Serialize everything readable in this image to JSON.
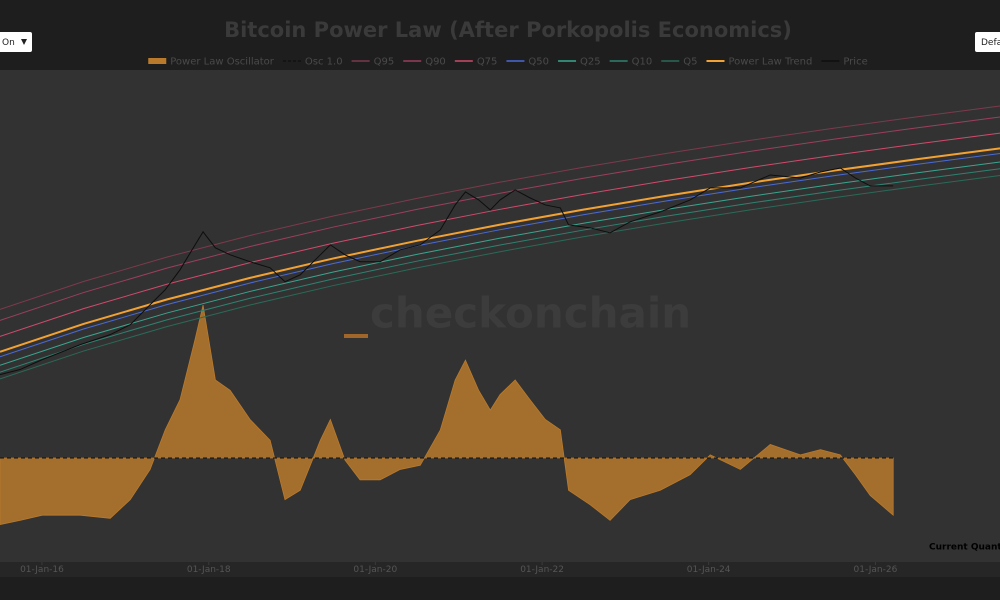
{
  "controls": {
    "toggle": "On",
    "preset": "Defa"
  },
  "chart_data": {
    "type": "line",
    "title": "Bitcoin Power Law (After Porkopolis Economics)",
    "watermark": "checkonchain",
    "annotation": "Current Quant",
    "legend_position": "top",
    "grid": false,
    "xlim": [
      "2015-07-01",
      "2027-07-01"
    ],
    "xticks": [
      {
        "value": "2016-01-01",
        "label": "01-Jan-16"
      },
      {
        "value": "2018-01-01",
        "label": "01-Jan-18"
      },
      {
        "value": "2020-01-01",
        "label": "01-Jan-20"
      },
      {
        "value": "2022-01-01",
        "label": "01-Jan-22"
      },
      {
        "value": "2024-01-01",
        "label": "01-Jan-24"
      },
      {
        "value": "2026-01-01",
        "label": "01-Jan-26"
      }
    ],
    "ylim": [
      2.3,
      1450000
    ],
    "y_log": true,
    "y2lim": [
      0,
      4.73
    ],
    "series": [
      {
        "name": "Power Law Oscillator",
        "kind": "area",
        "axis": "y2",
        "color": "#b97a2c",
        "x": [
          "2015-07-01",
          "2015-09-27",
          "2016-01-02",
          "2016-06-17",
          "2016-10-26",
          "2017-01-22",
          "2017-04-19",
          "2017-06-24",
          "2017-08-28",
          "2017-11-02",
          "2017-12-07",
          "2018-01-30",
          "2018-04-05",
          "2018-07-01",
          "2018-09-27",
          "2018-12-01",
          "2019-02-06",
          "2019-05-05",
          "2019-06-18",
          "2019-08-21",
          "2019-10-26",
          "2020-01-22",
          "2020-04-19",
          "2020-07-16",
          "2020-10-12",
          "2020-12-16",
          "2021-01-30",
          "2021-03-29",
          "2021-05-19",
          "2021-07-01",
          "2021-09-05",
          "2021-11-09",
          "2022-01-15",
          "2022-03-22",
          "2022-04-27",
          "2022-07-31",
          "2022-10-26",
          "2023-01-22",
          "2023-06-03",
          "2023-10-12",
          "2024-01-08",
          "2024-05-19",
          "2024-09-27",
          "2025-02-06",
          "2025-05-05",
          "2025-07-31",
          "2025-10-05",
          "2025-12-09",
          "2026-03-20"
        ],
        "values": [
          0.36,
          0.4,
          0.45,
          0.45,
          0.42,
          0.6,
          0.89,
          1.27,
          1.56,
          2.14,
          2.47,
          1.75,
          1.65,
          1.37,
          1.17,
          0.6,
          0.69,
          1.17,
          1.37,
          0.98,
          0.79,
          0.79,
          0.89,
          0.93,
          1.27,
          1.75,
          1.94,
          1.65,
          1.46,
          1.61,
          1.75,
          1.56,
          1.37,
          1.27,
          0.69,
          0.55,
          0.4,
          0.6,
          0.69,
          0.84,
          1.03,
          0.89,
          1.13,
          1.03,
          1.08,
          1.03,
          0.84,
          0.64,
          0.45
        ]
      },
      {
        "name": "Osc 1.0",
        "kind": "line",
        "dash": true,
        "axis": "y2",
        "color": "#111111",
        "x": [
          "2015-07-01",
          "2026-03-20"
        ],
        "values": [
          1,
          1
        ]
      },
      {
        "name": "Q95",
        "kind": "line",
        "color": "#7d3a4c",
        "x": [
          "2015-07-01",
          "2016-07-01",
          "2017-07-01",
          "2018-07-01",
          "2019-07-01",
          "2020-07-01",
          "2021-07-01",
          "2022-07-01",
          "2023-07-01",
          "2024-07-01",
          "2025-07-01",
          "2026-07-01",
          "2027-07-01"
        ],
        "values": [
          2188,
          4654,
          9037,
          16250,
          27540,
          44460,
          69030,
          103500,
          151000,
          214800,
          298500,
          406300,
          545800
        ]
      },
      {
        "name": "Q90",
        "kind": "line",
        "color": "#9c3f5c",
        "x": [
          "2015-07-01",
          "2016-07-01",
          "2017-07-01",
          "2018-07-01",
          "2019-07-01",
          "2020-07-01",
          "2021-07-01",
          "2022-07-01",
          "2023-07-01",
          "2024-07-01",
          "2025-07-01",
          "2026-07-01",
          "2027-07-01"
        ],
        "values": [
          1622,
          3450,
          6699,
          12050,
          20420,
          32960,
          51170,
          76720,
          111900,
          159200,
          221300,
          301200,
          404600
        ]
      },
      {
        "name": "Q75",
        "kind": "line",
        "color": "#d14a6c",
        "x": [
          "2015-07-01",
          "2016-07-01",
          "2017-07-01",
          "2018-07-01",
          "2019-07-01",
          "2020-07-01",
          "2021-07-01",
          "2022-07-01",
          "2023-07-01",
          "2024-07-01",
          "2025-07-01",
          "2026-07-01",
          "2027-07-01"
        ],
        "values": [
          1048,
          2229,
          4327,
          7782,
          13190,
          21290,
          33050,
          49550,
          72290,
          102800,
          142900,
          194500,
          261300
        ]
      },
      {
        "name": "Q50",
        "kind": "line",
        "color": "#4a6ad6",
        "x": [
          "2015-07-01",
          "2016-07-01",
          "2017-07-01",
          "2018-07-01",
          "2019-07-01",
          "2020-07-01",
          "2021-07-01",
          "2022-07-01",
          "2023-07-01",
          "2024-07-01",
          "2025-07-01",
          "2026-07-01",
          "2027-07-01"
        ],
        "values": [
          603,
          1282,
          2489,
          4477,
          7586,
          12250,
          19010,
          28510,
          41590,
          59160,
          82230,
          111900,
          150300
        ]
      },
      {
        "name": "Q25",
        "kind": "line",
        "color": "#3aa58e",
        "x": [
          "2015-07-01",
          "2016-07-01",
          "2017-07-01",
          "2018-07-01",
          "2019-07-01",
          "2020-07-01",
          "2021-07-01",
          "2022-07-01",
          "2023-07-01",
          "2024-07-01",
          "2025-07-01",
          "2026-07-01",
          "2027-07-01"
        ],
        "values": [
          479,
          1019,
          1978,
          3557,
          6027,
          9730,
          15110,
          22650,
          33040,
          47000,
          65330,
          88920,
          119400
        ]
      },
      {
        "name": "Q10",
        "kind": "line",
        "color": "#2e8270",
        "x": [
          "2015-07-01",
          "2016-07-01",
          "2017-07-01",
          "2018-07-01",
          "2019-07-01",
          "2020-07-01",
          "2021-07-01",
          "2022-07-01",
          "2023-07-01",
          "2024-07-01",
          "2025-07-01",
          "2026-07-01",
          "2027-07-01"
        ],
        "values": [
          398,
          846,
          1643,
          2956,
          5008,
          8085,
          12550,
          18820,
          27460,
          39050,
          54290,
          73890,
          99250
        ]
      },
      {
        "name": "Q5",
        "kind": "line",
        "color": "#2a6a58",
        "x": [
          "2015-07-01",
          "2016-07-01",
          "2017-07-01",
          "2018-07-01",
          "2019-07-01",
          "2020-07-01",
          "2021-07-01",
          "2022-07-01",
          "2023-07-01",
          "2024-07-01",
          "2025-07-01",
          "2026-07-01",
          "2027-07-01"
        ],
        "values": [
          331,
          705,
          1369,
          2462,
          4172,
          6735,
          10460,
          15680,
          22870,
          32530,
          45220,
          61550,
          82680
        ]
      },
      {
        "name": "Power Law Trend",
        "kind": "line",
        "width": 2,
        "color": "#f2a232",
        "x": [
          "2015-07-01",
          "2016-07-01",
          "2017-07-01",
          "2018-07-01",
          "2019-07-01",
          "2020-07-01",
          "2021-07-01",
          "2022-07-01",
          "2023-07-01",
          "2024-07-01",
          "2025-07-01",
          "2026-07-01",
          "2027-07-01"
        ],
        "values": [
          692,
          1472,
          2858,
          5140,
          8710,
          14060,
          21830,
          32730,
          47750,
          67920,
          94410,
          128500,
          172600
        ]
      },
      {
        "name": "Price",
        "kind": "line",
        "color": "#0e0e0e",
        "x": [
          "2015-07-01",
          "2015-09-27",
          "2016-01-02",
          "2016-06-17",
          "2016-10-26",
          "2017-01-22",
          "2017-04-19",
          "2017-06-24",
          "2017-08-28",
          "2017-11-02",
          "2017-12-07",
          "2018-01-30",
          "2018-04-05",
          "2018-07-01",
          "2018-09-27",
          "2018-12-01",
          "2019-02-06",
          "2019-05-05",
          "2019-06-18",
          "2019-08-21",
          "2019-10-26",
          "2020-01-22",
          "2020-04-19",
          "2020-07-16",
          "2020-10-12",
          "2020-12-16",
          "2021-01-30",
          "2021-03-29",
          "2021-05-19",
          "2021-07-01",
          "2021-09-05",
          "2021-11-09",
          "2022-01-15",
          "2022-03-22",
          "2022-04-27",
          "2022-07-31",
          "2022-10-26",
          "2023-01-22",
          "2023-06-03",
          "2023-10-12",
          "2024-01-08",
          "2024-05-19",
          "2024-09-27",
          "2025-02-06",
          "2025-05-05",
          "2025-07-31",
          "2025-10-05",
          "2025-12-09",
          "2026-03-20"
        ],
        "values": [
          372,
          427,
          559,
          840,
          1101,
          1443,
          2480,
          3720,
          6400,
          12600,
          17950,
          11620,
          9610,
          7960,
          6760,
          4630,
          5590,
          9610,
          12600,
          9610,
          7960,
          7960,
          11010,
          12600,
          18930,
          37220,
          53000,
          42660,
          32500,
          42660,
          55940,
          45080,
          37220,
          34350,
          21660,
          20000,
          17460,
          23520,
          30840,
          42660,
          59060,
          59060,
          83970,
          77420,
          91030,
          101400,
          77420,
          62360,
          62360
        ]
      }
    ]
  }
}
